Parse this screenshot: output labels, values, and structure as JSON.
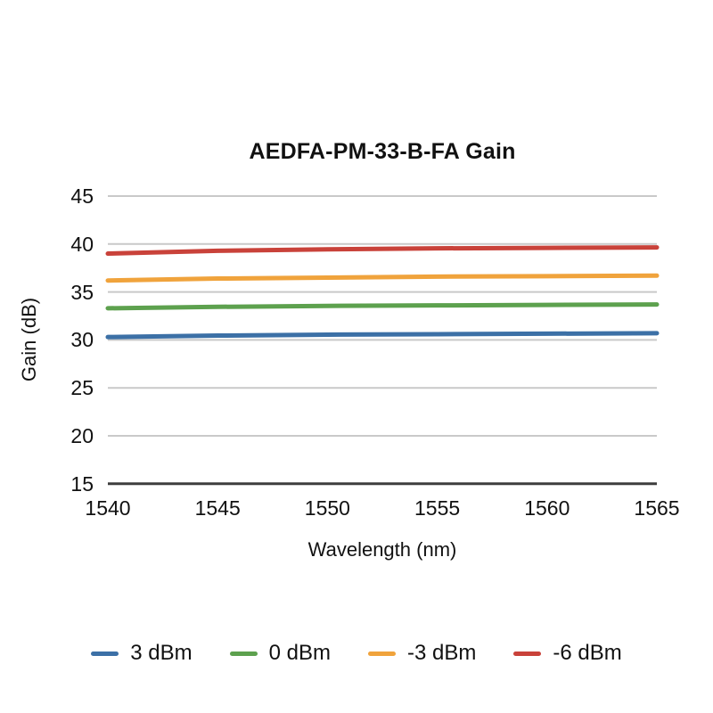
{
  "chart_data": {
    "type": "line",
    "title": "AEDFA-PM-33-B-FA Gain",
    "xlabel": "Wavelength (nm)",
    "ylabel": "Gain (dB)",
    "x": [
      1540,
      1545,
      1550,
      1555,
      1560,
      1565
    ],
    "xticks": [
      1540,
      1545,
      1550,
      1555,
      1560,
      1565
    ],
    "yticks": [
      45,
      40,
      35,
      30,
      25,
      20,
      15
    ],
    "xlim": [
      1540,
      1565
    ],
    "ylim": [
      15,
      45
    ],
    "grid": true,
    "legend_position": "bottom",
    "series": [
      {
        "name": "3 dBm",
        "color": "#3c70a6",
        "values": [
          30.3,
          30.45,
          30.55,
          30.6,
          30.65,
          30.7
        ]
      },
      {
        "name": "0 dBm",
        "color": "#5da14e",
        "values": [
          33.3,
          33.45,
          33.55,
          33.6,
          33.65,
          33.7
        ]
      },
      {
        "name": "-3 dBm",
        "color": "#f0a33c",
        "values": [
          36.2,
          36.4,
          36.5,
          36.6,
          36.65,
          36.7
        ]
      },
      {
        "name": "-6 dBm",
        "color": "#c9423a",
        "values": [
          39.0,
          39.3,
          39.45,
          39.55,
          39.6,
          39.65
        ]
      }
    ],
    "colors": {
      "grid": "#c9c9c9",
      "axis": "#3d3d3d",
      "text": "#111111"
    }
  }
}
